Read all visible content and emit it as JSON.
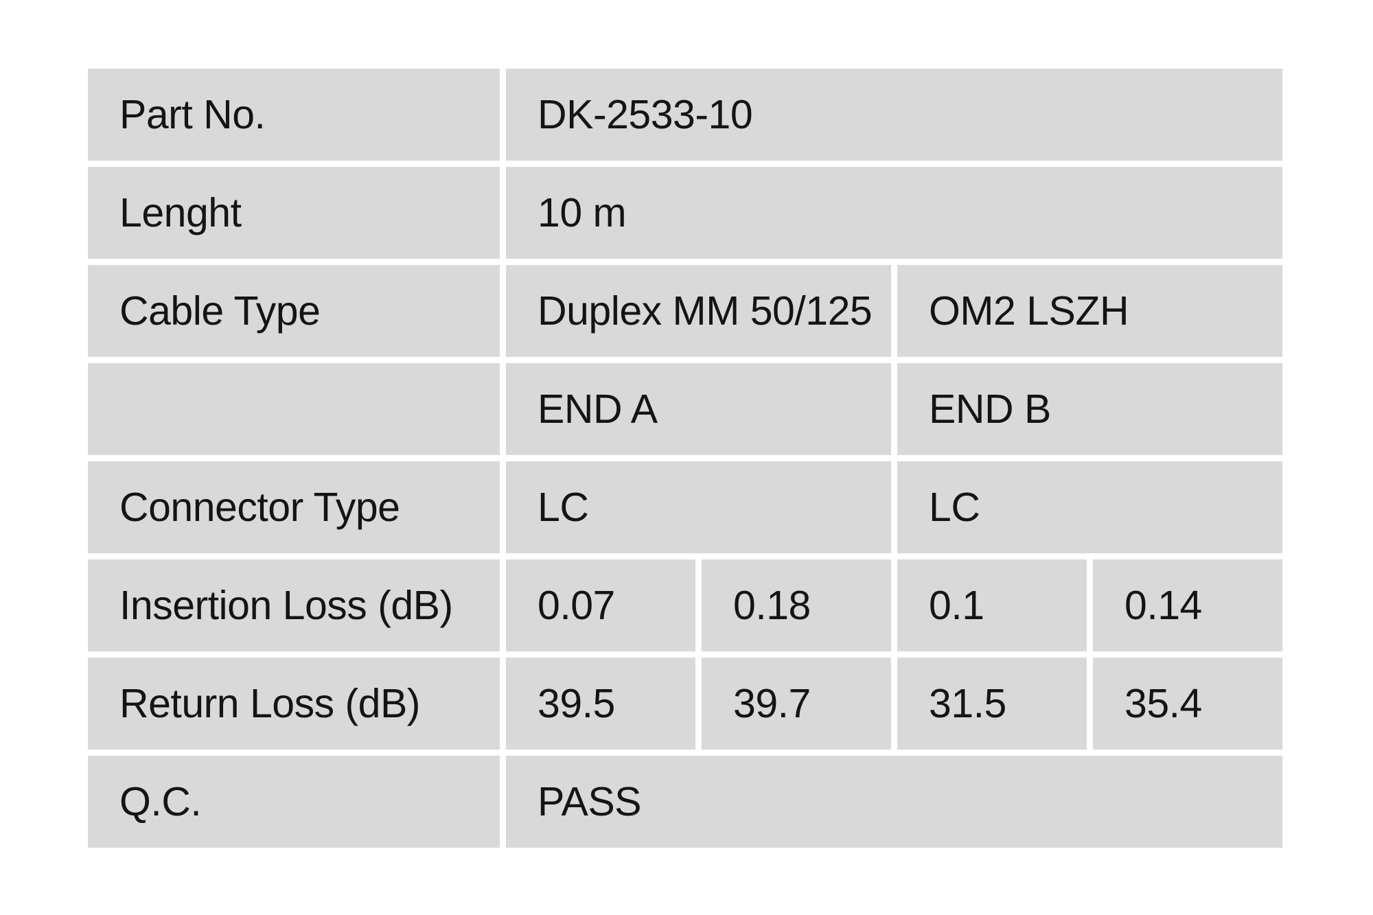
{
  "colors": {
    "page_bg": "#ffffff",
    "cell_bg": "#d9d9d9",
    "gutter": "#ffffff",
    "text": "#141414"
  },
  "table": {
    "description": "Fiber patch cable specification / quality control table",
    "rows": [
      {
        "label": "Part No.",
        "cells": [
          {
            "text": "DK-2533-10",
            "span": 4
          }
        ]
      },
      {
        "label": "Lenght",
        "cells": [
          {
            "text": "10 m",
            "span": 4
          }
        ]
      },
      {
        "label": "Cable Type",
        "cells": [
          {
            "text": "Duplex MM 50/125",
            "span": 2
          },
          {
            "text": "OM2 LSZH",
            "span": 2
          }
        ]
      },
      {
        "label": "",
        "cells": [
          {
            "text": "END A",
            "span": 2
          },
          {
            "text": "END B",
            "span": 2
          }
        ]
      },
      {
        "label": "Connector Type",
        "cells": [
          {
            "text": "LC",
            "span": 2
          },
          {
            "text": "LC",
            "span": 2
          }
        ]
      },
      {
        "label": "Insertion Loss (dB)",
        "cells": [
          {
            "text": "0.07",
            "span": 1
          },
          {
            "text": "0.18",
            "span": 1
          },
          {
            "text": "0.1",
            "span": 1
          },
          {
            "text": "0.14",
            "span": 1
          }
        ]
      },
      {
        "label": "Return Loss (dB)",
        "cells": [
          {
            "text": "39.5",
            "span": 1
          },
          {
            "text": "39.7",
            "span": 1
          },
          {
            "text": "31.5",
            "span": 1
          },
          {
            "text": "35.4",
            "span": 1
          }
        ]
      },
      {
        "label": "Q.C.",
        "cells": [
          {
            "text": "PASS",
            "span": 4
          }
        ]
      }
    ]
  }
}
